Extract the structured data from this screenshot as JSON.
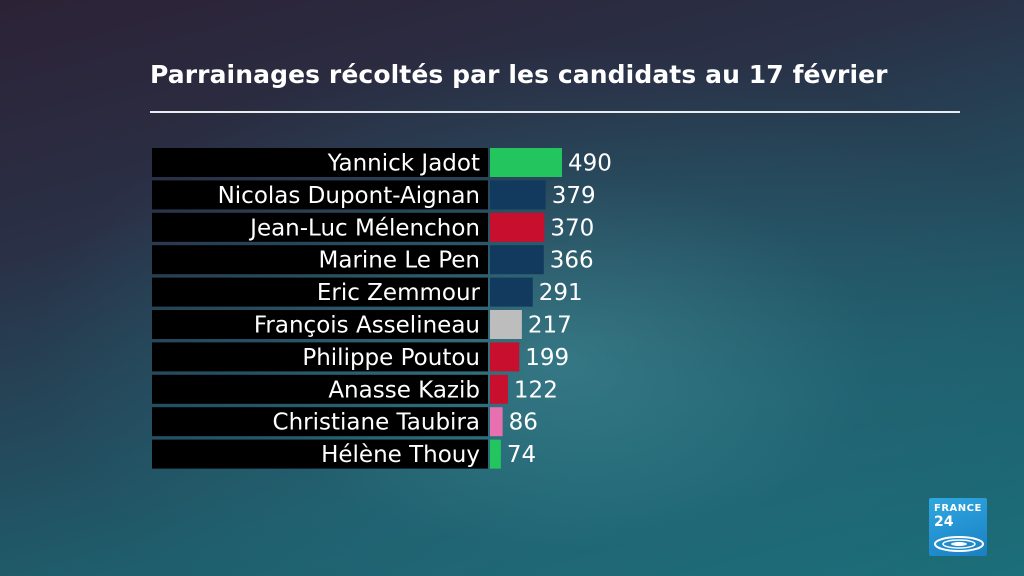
{
  "chart_data": {
    "type": "bar",
    "orientation": "horizontal",
    "title": "Parrainages récoltés par les candidats au 17 février",
    "categories": [
      "Yannick Jadot",
      "Nicolas Dupont-Aignan",
      "Jean-Luc Mélenchon",
      "Marine Le Pen",
      "Eric Zemmour",
      "François Asselineau",
      "Philippe Poutou",
      "Anasse Kazib",
      "Christiane Taubira",
      "Hélène Thouy"
    ],
    "values": [
      490,
      379,
      370,
      366,
      291,
      217,
      199,
      122,
      86,
      74
    ],
    "bar_colors": [
      "#22c55e",
      "#123a5e",
      "#c8102e",
      "#123a5e",
      "#123a5e",
      "#bdbdbd",
      "#c8102e",
      "#c8102e",
      "#e86fb0",
      "#22c55e"
    ],
    "xlim": [
      0,
      500
    ],
    "grid": false,
    "legend": "none"
  },
  "logo": {
    "line1": "FRANCE",
    "line2": "24"
  }
}
